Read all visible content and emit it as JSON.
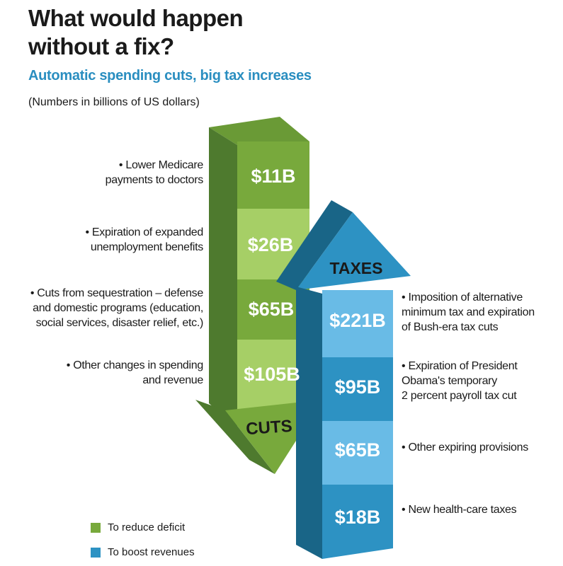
{
  "title_line1": "What would happen",
  "title_line2": "without a fix?",
  "subtitle": "Automatic spending cuts, big tax increases",
  "note": "(Numbers in billions of US dollars)",
  "colors": {
    "green_dark": "#4e7a2e",
    "green": "#78a93c",
    "green_light": "#a6cf66",
    "blue_dark": "#196587",
    "blue": "#2d92c3",
    "blue_light": "#69bbe6",
    "title_blue": "#2a8ec0"
  },
  "chart_data": {
    "type": "stacked-arrows",
    "title": "What would happen without a fix?",
    "unit": "billions of US dollars",
    "series": [
      {
        "name": "CUTS",
        "legend": "To reduce deficit",
        "color": "#78a93c",
        "direction": "down",
        "items": [
          {
            "label": "• Lower Medicare payments to doctors",
            "value": 11,
            "display": "$11B"
          },
          {
            "label": "• Expiration of expanded unemployment benefits",
            "value": 26,
            "display": "$26B"
          },
          {
            "label": "• Cuts from sequestration – defense and domestic programs (education, social services, disaster relief, etc.)",
            "value": 65,
            "display": "$65B"
          },
          {
            "label": "• Other changes in spending and revenue",
            "value": 105,
            "display": "$105B"
          }
        ]
      },
      {
        "name": "TAXES",
        "legend": "To boost revenues",
        "color": "#2d92c3",
        "direction": "up",
        "items": [
          {
            "label": "• Imposition of alternative minimum tax and expiration of Bush-era tax cuts",
            "value": 221,
            "display": "$221B"
          },
          {
            "label": "• Expiration of President Obama's temporary 2 percent payroll tax cut",
            "value": 95,
            "display": "$95B"
          },
          {
            "label": "• Other expiring provisions",
            "value": 65,
            "display": "$65B"
          },
          {
            "label": "• New health-care taxes",
            "value": 18,
            "display": "$18B"
          }
        ]
      }
    ]
  },
  "left_labels": [
    [
      "• Lower Medicare",
      "payments to doctors"
    ],
    [
      "• Expiration of expanded",
      "unemployment benefits"
    ],
    [
      "• Cuts from sequestration – defense",
      "and domestic programs (education,",
      "social services, disaster relief, etc.)"
    ],
    [
      "• Other changes in spending",
      "and revenue"
    ]
  ],
  "right_labels": [
    [
      "• Imposition of alternative",
      "minimum tax and expiration",
      "of Bush-era tax cuts"
    ],
    [
      "• Expiration of President",
      "Obama's temporary",
      "2 percent payroll tax cut"
    ],
    [
      "• Other expiring provisions"
    ],
    [
      "• New health-care taxes"
    ]
  ]
}
